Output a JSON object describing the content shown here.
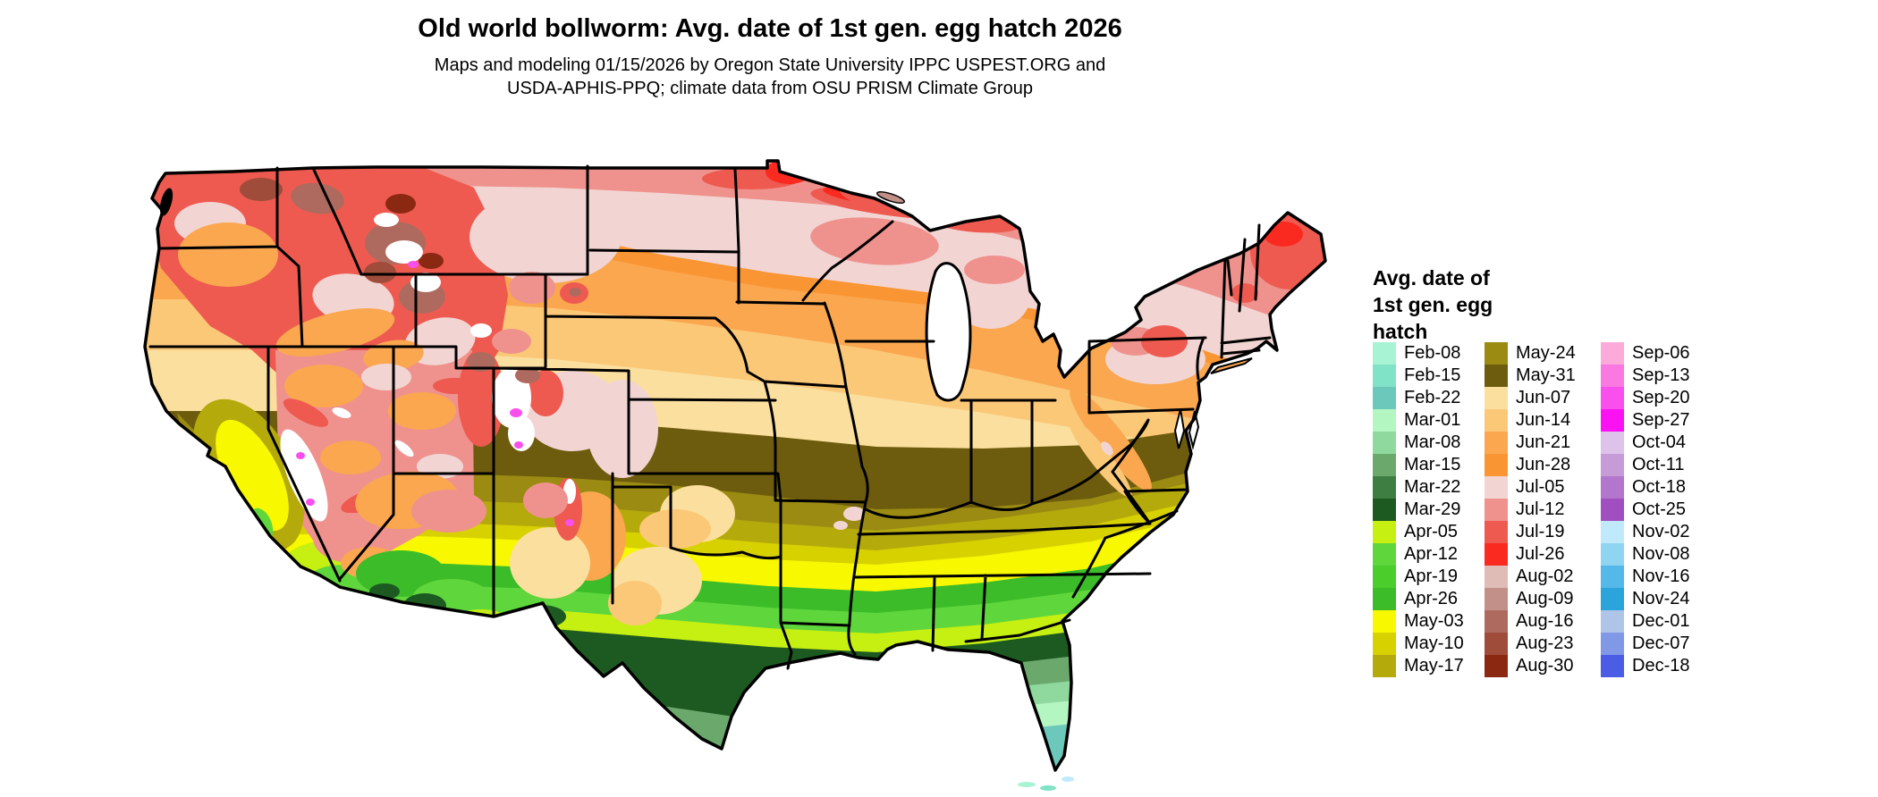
{
  "title": "Old world bollworm: Avg. date of 1st gen. egg hatch 2026",
  "subtitle_line1": "Maps and modeling 01/15/2026 by Oregon State University IPPC USPEST.ORG and",
  "subtitle_line2": "USDA-APHIS-PPQ; climate data from OSU PRISM Climate Group",
  "legend": {
    "title_lines": [
      "Avg. date of",
      "1st gen. egg",
      "hatch"
    ],
    "columns": [
      [
        {
          "date": "Feb-08",
          "color": "#a9f3d5"
        },
        {
          "date": "Feb-15",
          "color": "#80e2c6"
        },
        {
          "date": "Feb-22",
          "color": "#6dc8bc"
        },
        {
          "date": "Mar-01",
          "color": "#b4f6c2"
        },
        {
          "date": "Mar-08",
          "color": "#8fd89e"
        },
        {
          "date": "Mar-15",
          "color": "#6aa86c"
        },
        {
          "date": "Mar-22",
          "color": "#3e7e42"
        },
        {
          "date": "Mar-29",
          "color": "#1d5a21"
        },
        {
          "date": "Apr-05",
          "color": "#c6ef12"
        },
        {
          "date": "Apr-12",
          "color": "#5fd63c"
        },
        {
          "date": "Apr-19",
          "color": "#4bcd2b"
        },
        {
          "date": "Apr-26",
          "color": "#3bbc28"
        },
        {
          "date": "May-03",
          "color": "#f8f800"
        },
        {
          "date": "May-10",
          "color": "#d8d100"
        },
        {
          "date": "May-17",
          "color": "#b4aa0c"
        }
      ],
      [
        {
          "date": "May-24",
          "color": "#9b8b12"
        },
        {
          "date": "May-31",
          "color": "#6e5c0e"
        },
        {
          "date": "Jun-07",
          "color": "#fbdf9e"
        },
        {
          "date": "Jun-14",
          "color": "#fbc878"
        },
        {
          "date": "Jun-21",
          "color": "#faa750"
        },
        {
          "date": "Jun-28",
          "color": "#f99532"
        },
        {
          "date": "Jul-05",
          "color": "#f2d5d3"
        },
        {
          "date": "Jul-12",
          "color": "#ef928e"
        },
        {
          "date": "Jul-19",
          "color": "#ee5a50"
        },
        {
          "date": "Jul-26",
          "color": "#fa2a20"
        },
        {
          "date": "Aug-02",
          "color": "#dfbcb6"
        },
        {
          "date": "Aug-09",
          "color": "#c29089"
        },
        {
          "date": "Aug-16",
          "color": "#ae6a5e"
        },
        {
          "date": "Aug-23",
          "color": "#a04c3a"
        },
        {
          "date": "Aug-30",
          "color": "#8a2812"
        }
      ],
      [
        {
          "date": "Sep-06",
          "color": "#fbaada"
        },
        {
          "date": "Sep-13",
          "color": "#f978e2"
        },
        {
          "date": "Sep-20",
          "color": "#f94fec"
        },
        {
          "date": "Sep-27",
          "color": "#fb12f2"
        },
        {
          "date": "Oct-04",
          "color": "#ddc2ea"
        },
        {
          "date": "Oct-11",
          "color": "#c79ad8"
        },
        {
          "date": "Oct-18",
          "color": "#b277cc"
        },
        {
          "date": "Oct-25",
          "color": "#a14fc0"
        },
        {
          "date": "Nov-02",
          "color": "#c0eafb"
        },
        {
          "date": "Nov-08",
          "color": "#8fd5f2"
        },
        {
          "date": "Nov-16",
          "color": "#54b9e8"
        },
        {
          "date": "Nov-24",
          "color": "#2aa4da"
        },
        {
          "date": "Dec-01",
          "color": "#afc5e8"
        },
        {
          "date": "Dec-07",
          "color": "#8198e6"
        },
        {
          "date": "Dec-18",
          "color": "#4a5de4"
        }
      ]
    ]
  },
  "map": {
    "region": "Contiguous United States",
    "bands_north_to_south": [
      "Jul-12",
      "Jul-05",
      "Jun-28",
      "Jun-21",
      "Jun-14",
      "Jun-07",
      "May-31",
      "May-24",
      "May-17",
      "May-10",
      "May-03",
      "Apr-26",
      "Apr-12",
      "Apr-05",
      "Mar-29",
      "Mar-15",
      "Mar-08",
      "Mar-01",
      "Feb-22"
    ],
    "mountain_late_dates": [
      "Aug-02",
      "Aug-09",
      "Aug-16",
      "Aug-23",
      "Aug-30",
      "Sep-20"
    ],
    "no_data_color": "#ffffff",
    "border_color": "#000000"
  }
}
